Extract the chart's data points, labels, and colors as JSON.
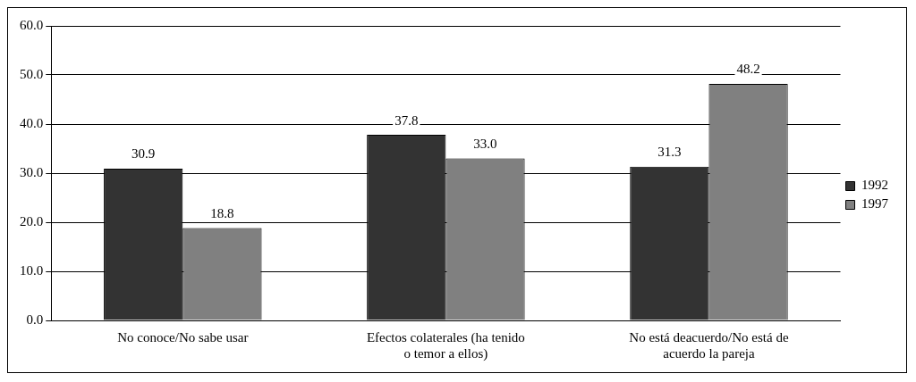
{
  "chart_data": {
    "type": "bar",
    "categories": [
      "No conoce/No sabe usar",
      "Efectos colaterales (ha tenido o temor a ellos)",
      "No está deacuerdo/No está de acuerdo la pareja"
    ],
    "series": [
      {
        "name": "1992",
        "color": "#333333",
        "values": [
          30.9,
          37.8,
          31.3
        ],
        "value_labels": [
          "30.9",
          "37.8",
          "31.3"
        ]
      },
      {
        "name": "1997",
        "color": "#808080",
        "values": [
          18.8,
          33.0,
          48.2
        ],
        "value_labels": [
          "18.8",
          "33.0",
          "48.2"
        ]
      }
    ],
    "ylim": [
      0,
      60
    ],
    "yticks": [
      {
        "value": 0,
        "label": "0.0"
      },
      {
        "value": 10,
        "label": "10.0"
      },
      {
        "value": 20,
        "label": "20.0"
      },
      {
        "value": 30,
        "label": "30.0"
      },
      {
        "value": 40,
        "label": "40.0"
      },
      {
        "value": 50,
        "label": "50.0"
      },
      {
        "value": 60,
        "label": "60.0"
      }
    ],
    "grid": "y",
    "legend": "right"
  }
}
